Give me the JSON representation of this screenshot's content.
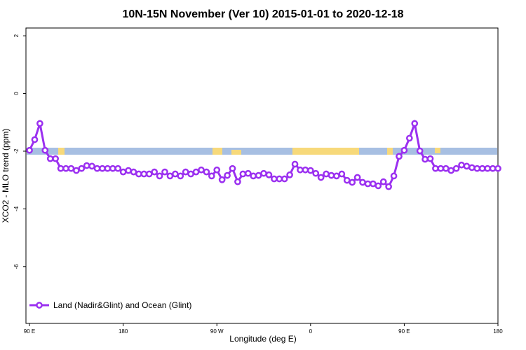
{
  "chart_data": {
    "type": "line",
    "title": "10N-15N November (Ver 10)   2015-01-01 to 2020-12-18",
    "x_label": "Longitude (deg E)",
    "y_label": "XCO2 - MLO trend (ppm)",
    "x": [
      90,
      95,
      100,
      105,
      110,
      115,
      120,
      125,
      130,
      135,
      140,
      145,
      150,
      155,
      160,
      165,
      170,
      175,
      180,
      185,
      190,
      195,
      200,
      205,
      210,
      215,
      220,
      225,
      230,
      235,
      240,
      245,
      250,
      255,
      260,
      265,
      270,
      275,
      280,
      285,
      290,
      295,
      300,
      305,
      310,
      315,
      320,
      325,
      330,
      335,
      340,
      345,
      350,
      355,
      360,
      365,
      370,
      375,
      380,
      385,
      390,
      395,
      400,
      405,
      410,
      415,
      420,
      425,
      430,
      435,
      440,
      445,
      450,
      455,
      460,
      465,
      470,
      475,
      480,
      485,
      490,
      495,
      500,
      505,
      510,
      515,
      520,
      525,
      530,
      535,
      540
    ],
    "series": [
      {
        "name": "Land (Nadir&Glint) and Ocean (Glint)",
        "color": "#9b30f0",
        "values": [
          -1.97,
          -1.6,
          -1.04,
          -1.97,
          -2.26,
          -2.26,
          -2.6,
          -2.6,
          -2.6,
          -2.67,
          -2.6,
          -2.5,
          -2.52,
          -2.6,
          -2.6,
          -2.6,
          -2.6,
          -2.6,
          -2.72,
          -2.67,
          -2.72,
          -2.79,
          -2.79,
          -2.79,
          -2.72,
          -2.86,
          -2.72,
          -2.86,
          -2.79,
          -2.86,
          -2.72,
          -2.79,
          -2.72,
          -2.65,
          -2.72,
          -2.86,
          -2.65,
          -2.99,
          -2.84,
          -2.6,
          -3.06,
          -2.79,
          -2.77,
          -2.86,
          -2.84,
          -2.77,
          -2.82,
          -2.96,
          -2.96,
          -2.96,
          -2.82,
          -2.45,
          -2.65,
          -2.65,
          -2.67,
          -2.77,
          -2.91,
          -2.79,
          -2.84,
          -2.86,
          -2.79,
          -3.01,
          -3.08,
          -2.91,
          -3.08,
          -3.13,
          -3.13,
          -3.2,
          -3.06,
          -3.23,
          -2.86,
          -2.18,
          -1.97,
          -1.55,
          -1.04,
          -1.99,
          -2.28,
          -2.26,
          -2.6,
          -2.6,
          -2.6,
          -2.67,
          -2.6,
          -2.48,
          -2.52,
          -2.57,
          -2.6,
          -2.6,
          -2.6,
          -2.6,
          -2.6
        ]
      }
    ],
    "xlim": [
      86.6,
      540
    ],
    "xticks": [
      {
        "value": 90,
        "label": "90 E"
      },
      {
        "value": 180,
        "label": "180"
      },
      {
        "value": 270,
        "label": "90 W"
      },
      {
        "value": 360,
        "label": "0"
      },
      {
        "value": 450,
        "label": "90 E"
      },
      {
        "value": 540,
        "label": "180"
      }
    ],
    "ylim": [
      -7.97,
      2.27
    ],
    "yticks": [
      -6,
      -4,
      -2,
      0,
      2
    ],
    "legend": "bottom-left"
  }
}
